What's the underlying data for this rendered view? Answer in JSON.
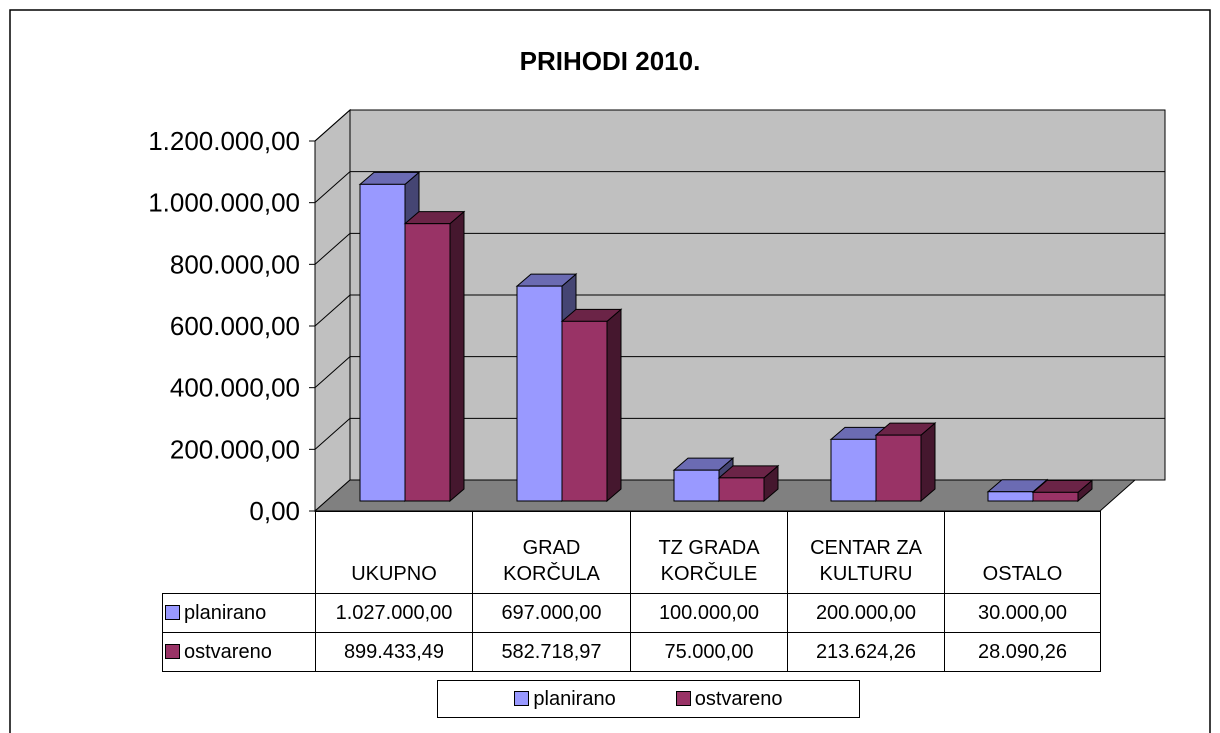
{
  "chart_data": {
    "type": "bar3d",
    "title": "PRIHODI 2010.",
    "categories": [
      "UKUPNO",
      "GRAD KORČULA",
      "TZ GRADA KORČULE",
      "CENTAR ZA KULTURU",
      "OSTALO"
    ],
    "series": [
      {
        "name": "planirano",
        "color": "#9999ff",
        "values": [
          1027000,
          697000,
          100000,
          200000,
          30000
        ],
        "value_labels": [
          "1.027.000,00",
          "697.000,00",
          "100.000,00",
          "200.000,00",
          "30.000,00"
        ]
      },
      {
        "name": "ostvareno",
        "color": "#993366",
        "values": [
          899433.49,
          582718.97,
          75000,
          213624.26,
          28090.26
        ],
        "value_labels": [
          "899.433,49",
          "582.718,97",
          "75.000,00",
          "213.624,26",
          "28.090,26"
        ]
      }
    ],
    "ylim": [
      0,
      1200000
    ],
    "yticks": [
      {
        "value": 0,
        "label": "0,00"
      },
      {
        "value": 200000,
        "label": "200.000,00"
      },
      {
        "value": 400000,
        "label": "400.000,00"
      },
      {
        "value": 600000,
        "label": "600.000,00"
      },
      {
        "value": 800000,
        "label": "800.000,00"
      },
      {
        "value": 1000000,
        "label": "1.000.000,00"
      },
      {
        "value": 1200000,
        "label": "1.200.000,00"
      }
    ],
    "grid": true
  }
}
